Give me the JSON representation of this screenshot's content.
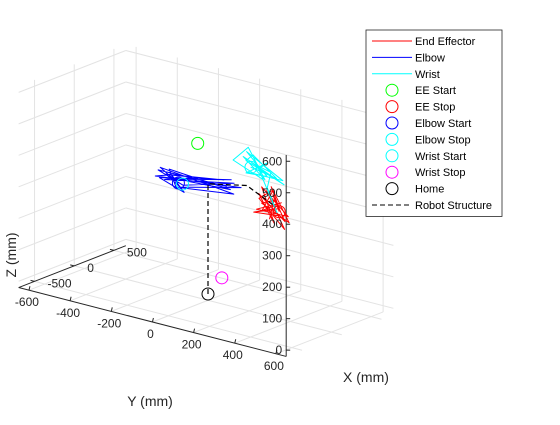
{
  "figure": {
    "background": "#ffffff"
  },
  "chart_data": {
    "type": "line",
    "projection": "3d",
    "title": "",
    "xlabel": "X (mm)",
    "ylabel": "Y (mm)",
    "zlabel": "Z (mm)",
    "xlim": [
      -700,
      650
    ],
    "ylim": [
      -650,
      650
    ],
    "zlim": [
      -20,
      620
    ],
    "x_ticks": [
      "-500",
      "0",
      "500"
    ],
    "y_ticks": [
      "600",
      "400",
      "200",
      "0",
      "-200",
      "-400",
      "-600"
    ],
    "z_ticks": [
      "0",
      "100",
      "200",
      "300",
      "400",
      "500",
      "600"
    ],
    "x_tick_values": [
      -500,
      0,
      500
    ],
    "y_tick_values": [
      600,
      400,
      200,
      0,
      -200,
      -400,
      -600
    ],
    "z_tick_values": [
      0,
      100,
      200,
      300,
      400,
      500,
      600
    ],
    "grid": true,
    "legend_position": "top-right",
    "legend": [
      {
        "label": "End Effector",
        "kind": "line",
        "color": "#ff0000",
        "dash": "solid"
      },
      {
        "label": "Elbow",
        "kind": "line",
        "color": "#0000ff",
        "dash": "solid"
      },
      {
        "label": "Wrist",
        "kind": "line",
        "color": "#00ffff",
        "dash": "solid"
      },
      {
        "label": "EE Start",
        "kind": "circle",
        "color": "#00ff00"
      },
      {
        "label": "EE Stop",
        "kind": "circle",
        "color": "#ff0000"
      },
      {
        "label": "Elbow Start",
        "kind": "circle",
        "color": "#0000ff"
      },
      {
        "label": "Elbow Stop",
        "kind": "circle",
        "color": "#00ffff"
      },
      {
        "label": "Wrist Start",
        "kind": "circle",
        "color": "#00ffff"
      },
      {
        "label": "Wrist Stop",
        "kind": "circle",
        "color": "#ff00ff"
      },
      {
        "label": "Home",
        "kind": "circle",
        "color": "#000000"
      },
      {
        "label": "Robot Structure",
        "kind": "line",
        "color": "#000000",
        "dash": "dashed"
      }
    ],
    "series": [
      {
        "name": "End Effector",
        "color": "#ff0000",
        "points": [
          [
            120,
            300,
            300
          ],
          [
            170,
            250,
            340
          ],
          [
            140,
            320,
            270
          ],
          [
            250,
            150,
            320
          ],
          [
            110,
            280,
            260
          ],
          [
            210,
            180,
            350
          ],
          [
            130,
            340,
            290
          ],
          [
            300,
            120,
            260
          ],
          [
            120,
            310,
            330
          ],
          [
            240,
            170,
            270
          ],
          [
            150,
            260,
            360
          ],
          [
            280,
            140,
            300
          ],
          [
            110,
            330,
            250
          ],
          [
            220,
            200,
            340
          ],
          [
            160,
            280,
            280
          ],
          [
            290,
            110,
            250
          ],
          [
            120,
            300,
            310
          ],
          [
            200,
            230,
            360
          ],
          [
            140,
            340,
            270
          ],
          [
            260,
            160,
            290
          ],
          [
            130,
            270,
            330
          ],
          [
            230,
            210,
            250
          ]
        ]
      },
      {
        "name": "Elbow",
        "color": "#0000ff",
        "points": [
          [
            -10,
            -140,
            330
          ],
          [
            30,
            -200,
            350
          ],
          [
            -40,
            -100,
            310
          ],
          [
            60,
            -260,
            320
          ],
          [
            500,
            -80,
            300
          ],
          [
            -20,
            -160,
            340
          ],
          [
            20,
            -240,
            360
          ],
          [
            480,
            -60,
            260
          ],
          [
            -30,
            -120,
            320
          ],
          [
            40,
            -220,
            340
          ],
          [
            460,
            -100,
            300
          ],
          [
            -20,
            -180,
            350
          ],
          [
            10,
            -260,
            330
          ],
          [
            520,
            -40,
            280
          ],
          [
            -40,
            -140,
            320
          ],
          [
            30,
            -200,
            360
          ],
          [
            490,
            -80,
            270
          ],
          [
            -10,
            -170,
            340
          ],
          [
            50,
            -230,
            320
          ],
          [
            510,
            -70,
            290
          ],
          [
            -30,
            -110,
            330
          ],
          [
            20,
            -250,
            350
          ],
          [
            470,
            -90,
            280
          ]
        ]
      },
      {
        "name": "Wrist",
        "color": "#00ffff",
        "points": [
          [
            50,
            250,
            400
          ],
          [
            160,
            60,
            420
          ],
          [
            300,
            80,
            450
          ],
          [
            120,
            230,
            390
          ],
          [
            340,
            40,
            410
          ],
          [
            180,
            300,
            380
          ],
          [
            90,
            150,
            440
          ],
          [
            360,
            80,
            420
          ],
          [
            140,
            280,
            400
          ],
          [
            230,
            120,
            400
          ],
          [
            60,
            270,
            420
          ],
          [
            320,
            90,
            400
          ],
          [
            170,
            240,
            410
          ],
          [
            280,
            180,
            340
          ],
          [
            90,
            300,
            300
          ],
          [
            300,
            130,
            390
          ],
          [
            150,
            230,
            440
          ],
          [
            220,
            100,
            380
          ],
          [
            70,
            260,
            410
          ],
          [
            330,
            60,
            430
          ],
          [
            190,
            290,
            390
          ],
          [
            120,
            140,
            400
          ]
        ]
      },
      {
        "name": "Robot Structure",
        "color": "#000000",
        "dash": "dashed",
        "points": [
          [
            0,
            0,
            0
          ],
          [
            0,
            0,
            350
          ],
          [
            100,
            150,
            360
          ],
          [
            200,
            250,
            300
          ]
        ]
      }
    ],
    "markers": [
      {
        "name": "EE Start",
        "color": "#00ff00",
        "point": [
          0,
          -50,
          470
        ]
      },
      {
        "name": "EE Stop",
        "color": "#ff0000",
        "point": [
          120,
          300,
          300
        ]
      },
      {
        "name": "Elbow Start",
        "color": "#0000ff",
        "point": [
          -10,
          -140,
          330
        ]
      },
      {
        "name": "Elbow Stop",
        "color": "#00ffff",
        "point": [
          -10,
          -120,
          330
        ]
      },
      {
        "name": "Wrist Start",
        "color": "#00ffff",
        "point": [
          230,
          120,
          400
        ]
      },
      {
        "name": "Wrist Stop",
        "color": "#ff00ff",
        "point": [
          200,
          -10,
          30
        ]
      },
      {
        "name": "Home",
        "color": "#000000",
        "point": [
          0,
          0,
          0
        ]
      }
    ]
  }
}
